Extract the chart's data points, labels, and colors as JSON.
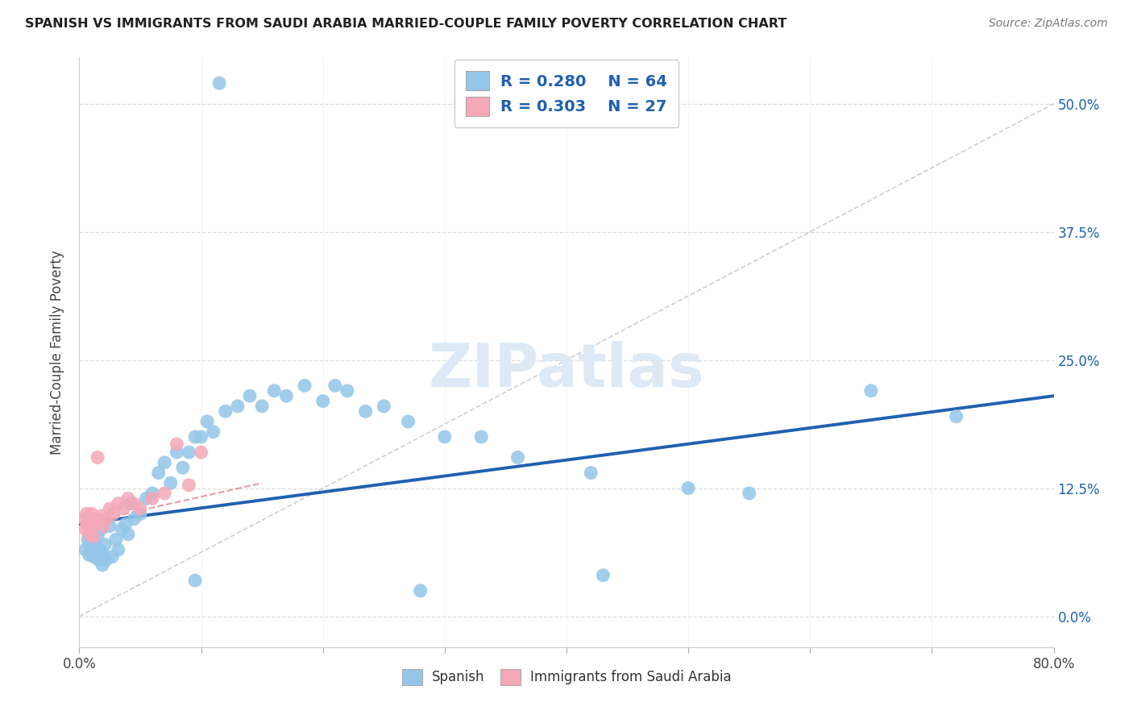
{
  "title": "SPANISH VS IMMIGRANTS FROM SAUDI ARABIA MARRIED-COUPLE FAMILY POVERTY CORRELATION CHART",
  "source": "Source: ZipAtlas.com",
  "ylabel": "Married-Couple Family Poverty",
  "xmin": 0.0,
  "xmax": 0.8,
  "ymin": -0.03,
  "ymax": 0.545,
  "R_blue": 0.28,
  "N_blue": 64,
  "R_pink": 0.303,
  "N_pink": 27,
  "blue_color": "#93c6e8",
  "pink_color": "#f4a8b8",
  "trend_line_color": "#2060b0",
  "pink_trend_color": "#e07080",
  "ref_line_color": "#c8c8c8",
  "legend_text_color": "#2060b0",
  "yticks": [
    0.0,
    0.125,
    0.25,
    0.375,
    0.5
  ],
  "ytick_labels_right": [
    "0.0%",
    "12.5%",
    "25.0%",
    "37.5%",
    "50.0%"
  ],
  "xtick_positions": [
    0.0,
    0.1,
    0.2,
    0.3,
    0.4,
    0.5,
    0.6,
    0.7,
    0.8
  ],
  "trend_x": [
    0.0,
    0.8
  ],
  "trend_y": [
    0.09,
    0.215
  ],
  "pink_trend_x": [
    0.0,
    0.15
  ],
  "pink_trend_y": [
    0.09,
    0.13
  ],
  "ref_line_x": [
    0.0,
    0.8
  ],
  "ref_line_y": [
    0.0,
    0.5
  ],
  "spanish_x": [
    0.005,
    0.007,
    0.008,
    0.009,
    0.01,
    0.011,
    0.012,
    0.013,
    0.014,
    0.015,
    0.016,
    0.017,
    0.018,
    0.019,
    0.02,
    0.021,
    0.022,
    0.025,
    0.027,
    0.03,
    0.032,
    0.035,
    0.038,
    0.04,
    0.042,
    0.045,
    0.05,
    0.055,
    0.06,
    0.065,
    0.07,
    0.075,
    0.08,
    0.085,
    0.09,
    0.095,
    0.1,
    0.105,
    0.11,
    0.12,
    0.13,
    0.14,
    0.15,
    0.16,
    0.17,
    0.185,
    0.2,
    0.21,
    0.22,
    0.235,
    0.25,
    0.27,
    0.3,
    0.33,
    0.36,
    0.42,
    0.5,
    0.55,
    0.65,
    0.72,
    0.115,
    0.095,
    0.28,
    0.43
  ],
  "spanish_y": [
    0.065,
    0.075,
    0.06,
    0.07,
    0.08,
    0.068,
    0.058,
    0.072,
    0.062,
    0.078,
    0.055,
    0.065,
    0.085,
    0.05,
    0.06,
    0.07,
    0.055,
    0.088,
    0.058,
    0.075,
    0.065,
    0.085,
    0.09,
    0.08,
    0.11,
    0.095,
    0.1,
    0.115,
    0.12,
    0.14,
    0.15,
    0.13,
    0.16,
    0.145,
    0.16,
    0.175,
    0.175,
    0.19,
    0.18,
    0.2,
    0.205,
    0.215,
    0.205,
    0.22,
    0.215,
    0.225,
    0.21,
    0.225,
    0.22,
    0.2,
    0.205,
    0.19,
    0.175,
    0.175,
    0.155,
    0.14,
    0.125,
    0.12,
    0.22,
    0.195,
    0.52,
    0.035,
    0.025,
    0.04
  ],
  "saudi_x": [
    0.004,
    0.005,
    0.006,
    0.007,
    0.008,
    0.009,
    0.01,
    0.011,
    0.012,
    0.014,
    0.016,
    0.018,
    0.02,
    0.022,
    0.025,
    0.028,
    0.032,
    0.036,
    0.04,
    0.045,
    0.05,
    0.06,
    0.07,
    0.08,
    0.09,
    0.1,
    0.015
  ],
  "saudi_y": [
    0.095,
    0.085,
    0.1,
    0.09,
    0.08,
    0.095,
    0.1,
    0.088,
    0.078,
    0.095,
    0.092,
    0.098,
    0.088,
    0.095,
    0.105,
    0.1,
    0.11,
    0.105,
    0.115,
    0.11,
    0.105,
    0.115,
    0.12,
    0.168,
    0.128,
    0.16,
    0.155
  ]
}
